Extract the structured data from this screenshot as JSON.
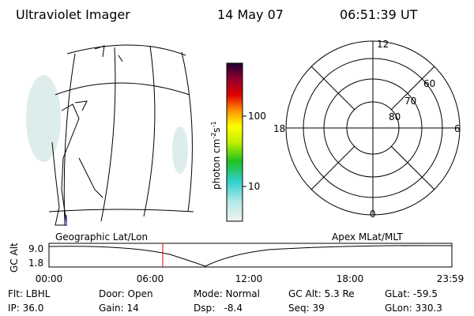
{
  "header": {
    "title": "Ultraviolet Imager",
    "date": "14 May 07",
    "time": "06:51:39 UT"
  },
  "colorbar": {
    "label": {
      "base": "photon cm",
      "exp1": "-2",
      "unit2": "s",
      "exp2": "-1"
    },
    "ticks": [
      "100",
      "10"
    ]
  },
  "polar": {
    "mlt_labels": [
      "12",
      "6",
      "0",
      "18"
    ],
    "lat_labels": [
      "60",
      "70",
      "80"
    ]
  },
  "timeline": {
    "left_label": "Geographic Lat/Lon",
    "right_label": "Apex MLat/MLT",
    "axis_label": "GC Alt",
    "yticks": [
      "9.0",
      "1.8"
    ],
    "xticks": [
      "00:00",
      "06:00",
      "12:00",
      "18:00",
      "23:59"
    ]
  },
  "info": {
    "rows": [
      [
        "Flt: LBHL",
        "Door: Open",
        "Mode: Normal",
        "GC Alt: 5.3 Re",
        "GLat: -59.5"
      ],
      [
        "IP: 36.0",
        "Gain: 14",
        "Dsp:   -8.4",
        "Seq: 39",
        "GLon: 330.3"
      ]
    ]
  }
}
